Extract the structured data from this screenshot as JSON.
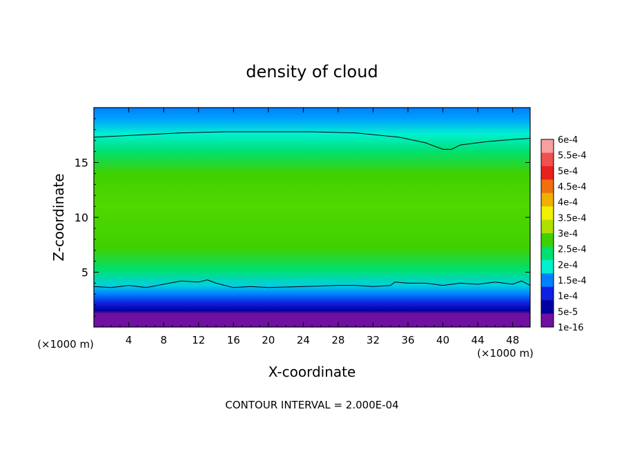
{
  "chart_data": {
    "type": "heatmap",
    "title": "density of cloud",
    "xlabel": "X-coordinate",
    "ylabel": "Z-coordinate",
    "x_unit": "(×1000 m)",
    "x_unit_right": "(×1000 m)",
    "xlim": [
      0,
      50
    ],
    "ylim": [
      0,
      20
    ],
    "x_ticks": [
      4,
      8,
      12,
      16,
      20,
      24,
      28,
      32,
      36,
      40,
      44,
      48
    ],
    "y_ticks": [
      5,
      10,
      15
    ],
    "footer": "CONTOUR INTERVAL = 2.000E-04",
    "colorbar": {
      "labels": [
        "6e-4",
        "5.5e-4",
        "5e-4",
        "4.5e-4",
        "4e-4",
        "3.5e-4",
        "3e-4",
        "2.5e-4",
        "2e-4",
        "1.5e-4",
        "1e-4",
        "5e-5",
        "1e-16"
      ],
      "colors": [
        "#f7a0a0",
        "#f05050",
        "#e82020",
        "#f07010",
        "#f0b000",
        "#f0f000",
        "#b0e000",
        "#40d000",
        "#00e070",
        "#00f0d0",
        "#0080ff",
        "#1020e0",
        "#0000a0",
        "#7010a0"
      ]
    },
    "layers": [
      {
        "z_top": 1.4,
        "value": "1e-16"
      },
      {
        "z_top": 2.2,
        "value": "5e-5"
      },
      {
        "z_top": 3.0,
        "value": "1e-4"
      },
      {
        "z_top": 3.8,
        "value": "1.5e-4"
      },
      {
        "z_top": 6.0,
        "value": "2e-4"
      },
      {
        "z_top": 15.0,
        "value": "2.5e-4"
      },
      {
        "z_top": 17.5,
        "value": "2e-4"
      },
      {
        "z_top": 19.0,
        "value": "1.5e-4"
      },
      {
        "z_top": 20.0,
        "value": "1e-4"
      }
    ],
    "contour_upper": [
      [
        0,
        17.3
      ],
      [
        5,
        17.5
      ],
      [
        10,
        17.7
      ],
      [
        15,
        17.8
      ],
      [
        20,
        17.8
      ],
      [
        25,
        17.8
      ],
      [
        30,
        17.7
      ],
      [
        35,
        17.3
      ],
      [
        38,
        16.8
      ],
      [
        40,
        16.2
      ],
      [
        41,
        16.2
      ],
      [
        42,
        16.6
      ],
      [
        45,
        16.9
      ],
      [
        48,
        17.1
      ],
      [
        50,
        17.2
      ]
    ],
    "contour_lower": [
      [
        0,
        3.7
      ],
      [
        2,
        3.6
      ],
      [
        4,
        3.8
      ],
      [
        6,
        3.6
      ],
      [
        8,
        3.9
      ],
      [
        10,
        4.2
      ],
      [
        12,
        4.1
      ],
      [
        13,
        4.3
      ],
      [
        14,
        4.0
      ],
      [
        16,
        3.6
      ],
      [
        18,
        3.7
      ],
      [
        20,
        3.6
      ],
      [
        24,
        3.7
      ],
      [
        28,
        3.8
      ],
      [
        30,
        3.8
      ],
      [
        32,
        3.7
      ],
      [
        34,
        3.8
      ],
      [
        34.5,
        4.1
      ],
      [
        36,
        4.0
      ],
      [
        38,
        4.0
      ],
      [
        40,
        3.8
      ],
      [
        42,
        4.0
      ],
      [
        44,
        3.9
      ],
      [
        46,
        4.1
      ],
      [
        48,
        3.9
      ],
      [
        49,
        4.2
      ],
      [
        50,
        3.8
      ]
    ]
  }
}
